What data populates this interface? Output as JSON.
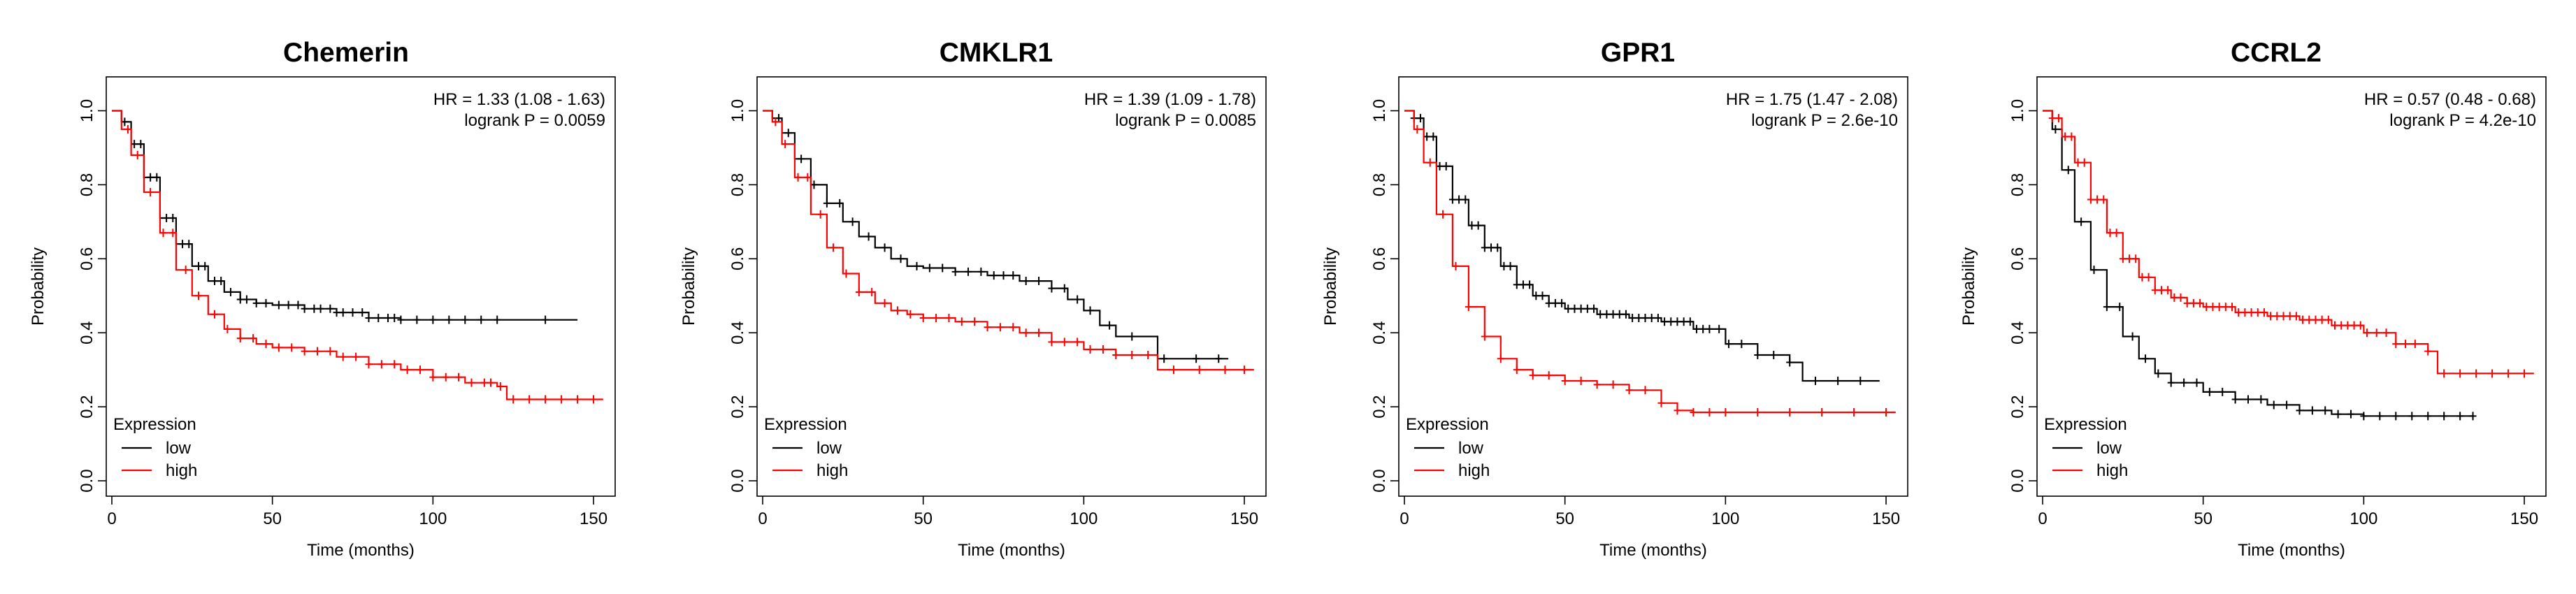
{
  "chart_data": [
    {
      "type": "line",
      "title": "Chemerin",
      "xlabel": "Time (months)",
      "ylabel": "Probability",
      "xlim": [
        0,
        155
      ],
      "ylim": [
        0,
        1.05
      ],
      "xticks": [
        0,
        50,
        100,
        150
      ],
      "yticks": [
        "0.0",
        "0.2",
        "0.4",
        "0.6",
        "0.8",
        "1.0"
      ],
      "stats": {
        "hr": "HR = 1.33 (1.08 - 1.63)",
        "p": "logrank P = 0.0059"
      },
      "legend": {
        "title": "Expression",
        "position": "bottom-left"
      },
      "series": [
        {
          "name": "low",
          "color": "#000000",
          "points": [
            [
              0,
              1.0
            ],
            [
              3,
              0.97
            ],
            [
              6,
              0.91
            ],
            [
              10,
              0.82
            ],
            [
              15,
              0.71
            ],
            [
              20,
              0.64
            ],
            [
              25,
              0.58
            ],
            [
              30,
              0.54
            ],
            [
              35,
              0.51
            ],
            [
              40,
              0.49
            ],
            [
              45,
              0.48
            ],
            [
              50,
              0.475
            ],
            [
              60,
              0.465
            ],
            [
              70,
              0.455
            ],
            [
              80,
              0.44
            ],
            [
              90,
              0.435
            ],
            [
              100,
              0.435
            ],
            [
              120,
              0.435
            ],
            [
              145,
              0.435
            ]
          ],
          "censor_x": [
            4,
            7,
            9,
            12,
            14,
            17,
            19,
            22,
            24,
            27,
            29,
            32,
            34,
            37,
            40,
            42,
            45,
            48,
            52,
            55,
            58,
            60,
            63,
            65,
            68,
            70,
            72,
            75,
            78,
            80,
            83,
            86,
            88,
            90,
            95,
            100,
            105,
            110,
            115,
            120,
            135
          ]
        },
        {
          "name": "high",
          "color": "#ff0000",
          "points": [
            [
              0,
              1.0
            ],
            [
              3,
              0.95
            ],
            [
              6,
              0.88
            ],
            [
              10,
              0.78
            ],
            [
              15,
              0.67
            ],
            [
              20,
              0.57
            ],
            [
              25,
              0.5
            ],
            [
              30,
              0.45
            ],
            [
              35,
              0.41
            ],
            [
              40,
              0.385
            ],
            [
              45,
              0.37
            ],
            [
              50,
              0.36
            ],
            [
              60,
              0.35
            ],
            [
              70,
              0.335
            ],
            [
              80,
              0.315
            ],
            [
              90,
              0.3
            ],
            [
              100,
              0.28
            ],
            [
              110,
              0.265
            ],
            [
              120,
              0.255
            ],
            [
              123,
              0.22
            ],
            [
              153,
              0.22
            ]
          ],
          "censor_x": [
            5,
            8,
            12,
            16,
            19,
            23,
            27,
            32,
            36,
            40,
            44,
            48,
            52,
            56,
            60,
            64,
            68,
            72,
            76,
            80,
            84,
            88,
            92,
            96,
            100,
            104,
            108,
            112,
            116,
            118,
            121,
            125,
            130,
            135,
            140,
            145,
            150
          ]
        }
      ]
    },
    {
      "type": "line",
      "title": "CMKLR1",
      "xlabel": "Time (months)",
      "ylabel": "Probability",
      "xlim": [
        0,
        155
      ],
      "ylim": [
        0,
        1.05
      ],
      "xticks": [
        0,
        50,
        100,
        150
      ],
      "yticks": [
        "0.0",
        "0.2",
        "0.4",
        "0.6",
        "0.8",
        "1.0"
      ],
      "stats": {
        "hr": "HR = 1.39 (1.09 - 1.78)",
        "p": "logrank P = 0.0085"
      },
      "legend": {
        "title": "Expression",
        "position": "bottom-left"
      },
      "series": [
        {
          "name": "low",
          "color": "#000000",
          "points": [
            [
              0,
              1.0
            ],
            [
              3,
              0.98
            ],
            [
              6,
              0.94
            ],
            [
              10,
              0.87
            ],
            [
              15,
              0.8
            ],
            [
              20,
              0.75
            ],
            [
              25,
              0.7
            ],
            [
              30,
              0.66
            ],
            [
              35,
              0.63
            ],
            [
              40,
              0.6
            ],
            [
              45,
              0.58
            ],
            [
              50,
              0.575
            ],
            [
              60,
              0.565
            ],
            [
              70,
              0.555
            ],
            [
              80,
              0.54
            ],
            [
              90,
              0.52
            ],
            [
              95,
              0.49
            ],
            [
              100,
              0.46
            ],
            [
              105,
              0.42
            ],
            [
              110,
              0.39
            ],
            [
              123,
              0.33
            ],
            [
              145,
              0.33
            ]
          ],
          "censor_x": [
            5,
            8,
            12,
            16,
            20,
            24,
            28,
            33,
            38,
            43,
            48,
            52,
            56,
            60,
            64,
            68,
            72,
            75,
            78,
            82,
            86,
            90,
            94,
            98,
            102,
            108,
            115,
            125,
            135,
            142
          ]
        },
        {
          "name": "high",
          "color": "#ff0000",
          "points": [
            [
              0,
              1.0
            ],
            [
              3,
              0.97
            ],
            [
              6,
              0.91
            ],
            [
              10,
              0.82
            ],
            [
              15,
              0.72
            ],
            [
              20,
              0.63
            ],
            [
              25,
              0.56
            ],
            [
              30,
              0.51
            ],
            [
              35,
              0.48
            ],
            [
              40,
              0.46
            ],
            [
              45,
              0.45
            ],
            [
              50,
              0.44
            ],
            [
              60,
              0.43
            ],
            [
              70,
              0.415
            ],
            [
              80,
              0.4
            ],
            [
              90,
              0.375
            ],
            [
              100,
              0.355
            ],
            [
              110,
              0.34
            ],
            [
              123,
              0.3
            ],
            [
              153,
              0.3
            ]
          ],
          "censor_x": [
            4,
            7,
            11,
            14,
            18,
            22,
            26,
            30,
            34,
            38,
            42,
            46,
            50,
            54,
            58,
            62,
            66,
            70,
            74,
            78,
            82,
            86,
            90,
            94,
            98,
            102,
            106,
            110,
            115,
            120,
            128,
            136,
            144,
            150
          ]
        }
      ]
    },
    {
      "type": "line",
      "title": "GPR1",
      "xlabel": "Time (months)",
      "ylabel": "Probability",
      "xlim": [
        0,
        155
      ],
      "ylim": [
        0,
        1.05
      ],
      "xticks": [
        0,
        50,
        100,
        150
      ],
      "yticks": [
        "0.0",
        "0.2",
        "0.4",
        "0.6",
        "0.8",
        "1.0"
      ],
      "stats": {
        "hr": "HR = 1.75 (1.47 - 2.08)",
        "p": "logrank P = 2.6e-10"
      },
      "legend": {
        "title": "Expression",
        "position": "bottom-left"
      },
      "series": [
        {
          "name": "low",
          "color": "#000000",
          "points": [
            [
              0,
              1.0
            ],
            [
              3,
              0.98
            ],
            [
              6,
              0.93
            ],
            [
              10,
              0.85
            ],
            [
              15,
              0.76
            ],
            [
              20,
              0.69
            ],
            [
              25,
              0.63
            ],
            [
              30,
              0.58
            ],
            [
              35,
              0.53
            ],
            [
              40,
              0.5
            ],
            [
              45,
              0.48
            ],
            [
              50,
              0.465
            ],
            [
              60,
              0.45
            ],
            [
              70,
              0.44
            ],
            [
              80,
              0.43
            ],
            [
              90,
              0.41
            ],
            [
              100,
              0.37
            ],
            [
              110,
              0.34
            ],
            [
              120,
              0.32
            ],
            [
              124,
              0.27
            ],
            [
              148,
              0.27
            ]
          ],
          "censor_x": [
            3,
            5,
            7,
            9,
            11,
            13,
            15,
            17,
            19,
            21,
            23,
            25,
            27,
            29,
            31,
            33,
            35,
            37,
            39,
            41,
            43,
            45,
            47,
            49,
            51,
            53,
            55,
            57,
            59,
            61,
            63,
            65,
            67,
            69,
            71,
            73,
            75,
            77,
            79,
            81,
            83,
            85,
            87,
            89,
            91,
            93,
            95,
            98,
            101,
            105,
            110,
            115,
            120,
            128,
            135,
            142
          ]
        },
        {
          "name": "high",
          "color": "#ff0000",
          "points": [
            [
              0,
              1.0
            ],
            [
              3,
              0.95
            ],
            [
              6,
              0.86
            ],
            [
              10,
              0.72
            ],
            [
              15,
              0.58
            ],
            [
              20,
              0.47
            ],
            [
              25,
              0.39
            ],
            [
              30,
              0.33
            ],
            [
              35,
              0.3
            ],
            [
              40,
              0.285
            ],
            [
              50,
              0.27
            ],
            [
              60,
              0.26
            ],
            [
              70,
              0.245
            ],
            [
              80,
              0.21
            ],
            [
              85,
              0.19
            ],
            [
              90,
              0.185
            ],
            [
              153,
              0.185
            ]
          ],
          "censor_x": [
            4,
            8,
            12,
            16,
            20,
            25,
            30,
            35,
            40,
            45,
            50,
            55,
            60,
            65,
            70,
            75,
            80,
            85,
            90,
            95,
            100,
            110,
            120,
            130,
            140,
            150
          ]
        }
      ]
    },
    {
      "type": "line",
      "title": "CCRL2",
      "xlabel": "Time (months)",
      "ylabel": "Probability",
      "xlim": [
        0,
        155
      ],
      "ylim": [
        0,
        1.05
      ],
      "xticks": [
        0,
        50,
        100,
        150
      ],
      "yticks": [
        "0.0",
        "0.2",
        "0.4",
        "0.6",
        "0.8",
        "1.0"
      ],
      "stats": {
        "hr": "HR = 0.57 (0.48 - 0.68)",
        "p": "logrank P = 4.2e-10"
      },
      "legend": {
        "title": "Expression",
        "position": "bottom-left"
      },
      "series": [
        {
          "name": "low",
          "color": "#000000",
          "points": [
            [
              0,
              1.0
            ],
            [
              3,
              0.95
            ],
            [
              6,
              0.84
            ],
            [
              10,
              0.7
            ],
            [
              15,
              0.57
            ],
            [
              20,
              0.47
            ],
            [
              25,
              0.39
            ],
            [
              30,
              0.33
            ],
            [
              35,
              0.29
            ],
            [
              40,
              0.265
            ],
            [
              50,
              0.24
            ],
            [
              60,
              0.22
            ],
            [
              70,
              0.205
            ],
            [
              80,
              0.19
            ],
            [
              90,
              0.18
            ],
            [
              100,
              0.175
            ],
            [
              134,
              0.175
            ]
          ],
          "censor_x": [
            4,
            8,
            12,
            16,
            20,
            24,
            28,
            32,
            36,
            40,
            44,
            48,
            52,
            56,
            60,
            64,
            68,
            72,
            76,
            80,
            84,
            88,
            92,
            96,
            100,
            105,
            110,
            115,
            120,
            125,
            130,
            134
          ]
        },
        {
          "name": "high",
          "color": "#ff0000",
          "points": [
            [
              0,
              1.0
            ],
            [
              3,
              0.98
            ],
            [
              6,
              0.93
            ],
            [
              10,
              0.86
            ],
            [
              15,
              0.76
            ],
            [
              20,
              0.67
            ],
            [
              25,
              0.6
            ],
            [
              30,
              0.55
            ],
            [
              35,
              0.515
            ],
            [
              40,
              0.495
            ],
            [
              45,
              0.48
            ],
            [
              50,
              0.47
            ],
            [
              60,
              0.455
            ],
            [
              70,
              0.445
            ],
            [
              80,
              0.435
            ],
            [
              90,
              0.42
            ],
            [
              100,
              0.4
            ],
            [
              110,
              0.37
            ],
            [
              120,
              0.35
            ],
            [
              123,
              0.29
            ],
            [
              153,
              0.29
            ]
          ],
          "censor_x": [
            3,
            5,
            7,
            9,
            11,
            13,
            15,
            17,
            19,
            21,
            23,
            25,
            27,
            29,
            31,
            33,
            35,
            37,
            39,
            41,
            43,
            45,
            47,
            49,
            51,
            53,
            55,
            57,
            59,
            61,
            63,
            65,
            67,
            69,
            71,
            73,
            75,
            77,
            79,
            81,
            83,
            85,
            87,
            89,
            91,
            93,
            95,
            97,
            99,
            101,
            104,
            107,
            110,
            113,
            116,
            120,
            125,
            130,
            135,
            140,
            145,
            150
          ]
        }
      ]
    }
  ]
}
